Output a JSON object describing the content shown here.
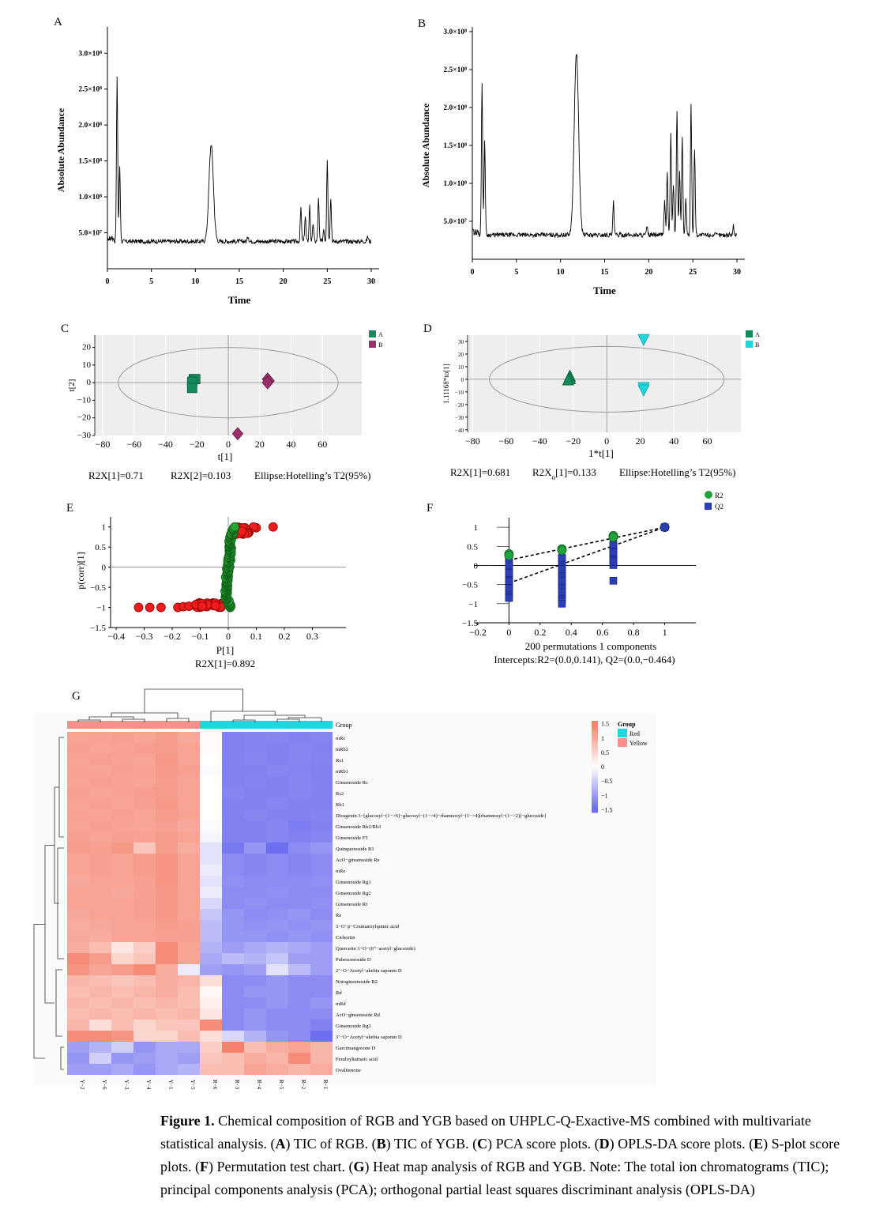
{
  "panel_labels": [
    "A",
    "B",
    "C",
    "D",
    "E",
    "F",
    "G"
  ],
  "chart_data": [
    {
      "panel": "A",
      "type": "line",
      "xlabel": "Time",
      "ylabel": "Absolute Abundance",
      "xlim": [
        0,
        30
      ],
      "ylim": [
        0,
        330000000
      ],
      "xticks": [
        "0",
        "5",
        "10",
        "15",
        "20",
        "25",
        "30"
      ],
      "yticks": [
        "5.0×10⁷",
        "1.0×10⁸",
        "1.5×10⁸",
        "2.0×10⁸",
        "2.5×10⁸",
        "3.0×10⁸"
      ],
      "ytick_values": [
        50000000,
        100000000,
        150000000,
        200000000,
        250000000,
        300000000
      ],
      "peaks": [
        {
          "x": 1.1,
          "y": 265000000
        },
        {
          "x": 1.4,
          "y": 143000000
        },
        {
          "x": 11.8,
          "y": 173000000
        },
        {
          "x": 16.0,
          "y": 46000000
        },
        {
          "x": 22.0,
          "y": 85000000
        },
        {
          "x": 22.5,
          "y": 73000000
        },
        {
          "x": 23.0,
          "y": 88000000
        },
        {
          "x": 23.4,
          "y": 63000000
        },
        {
          "x": 24.0,
          "y": 97000000
        },
        {
          "x": 24.6,
          "y": 56000000
        },
        {
          "x": 25.0,
          "y": 153000000
        },
        {
          "x": 25.4,
          "y": 100000000
        },
        {
          "x": 29.6,
          "y": 45000000
        }
      ],
      "baseline": 38000000
    },
    {
      "panel": "B",
      "type": "line",
      "xlabel": "Time",
      "ylabel": "Absolute Abundance",
      "xlim": [
        0,
        30
      ],
      "ylim": [
        0,
        300000000
      ],
      "xticks": [
        "0",
        "5",
        "10",
        "15",
        "20",
        "25",
        "30"
      ],
      "yticks": [
        "5.0×10⁷",
        "1.0×10⁸",
        "1.5×10⁸",
        "2.0×10⁸",
        "2.5×10⁸",
        "3.0×10⁸"
      ],
      "ytick_values": [
        50000000,
        100000000,
        150000000,
        200000000,
        250000000,
        300000000
      ],
      "peaks": [
        {
          "x": 1.1,
          "y": 235000000
        },
        {
          "x": 1.4,
          "y": 156000000
        },
        {
          "x": 11.8,
          "y": 272000000
        },
        {
          "x": 16.0,
          "y": 75000000
        },
        {
          "x": 19.8,
          "y": 42000000
        },
        {
          "x": 21.8,
          "y": 78000000
        },
        {
          "x": 22.1,
          "y": 115000000
        },
        {
          "x": 22.5,
          "y": 167000000
        },
        {
          "x": 22.8,
          "y": 100000000
        },
        {
          "x": 23.2,
          "y": 198000000
        },
        {
          "x": 23.5,
          "y": 115000000
        },
        {
          "x": 23.8,
          "y": 162000000
        },
        {
          "x": 24.2,
          "y": 80000000
        },
        {
          "x": 24.8,
          "y": 204000000
        },
        {
          "x": 25.2,
          "y": 145000000
        },
        {
          "x": 29.6,
          "y": 44000000
        }
      ],
      "baseline": 32000000
    },
    {
      "panel": "C",
      "type": "scatter",
      "xlabel": "t[1]",
      "ylabel": "t[2]",
      "xlim": [
        -85,
        85
      ],
      "ylim": [
        -30,
        27
      ],
      "xticks": [
        "−80",
        "−60",
        "−40",
        "−20",
        "0",
        "20",
        "40",
        "60"
      ],
      "yticks": [
        "−30",
        "−20",
        "−10",
        "0",
        "10",
        "20"
      ],
      "legend": [
        "A",
        "B"
      ],
      "series": [
        {
          "name": "A",
          "color": "#138b5a",
          "marker": "square",
          "points": [
            [
              -22,
              2
            ],
            [
              -21,
              2
            ],
            [
              -23,
              0.5
            ],
            [
              -23,
              -3
            ]
          ]
        },
        {
          "name": "B",
          "color": "#9c2e6b",
          "marker": "diamond",
          "points": [
            [
              25,
              2
            ],
            [
              26,
              1
            ],
            [
              25,
              0
            ],
            [
              6,
              -29
            ]
          ]
        }
      ],
      "footer": [
        "R2X[1]=0.71",
        "R2X[2]=0.103",
        "Ellipse:Hotelling’s T2(95%)"
      ]
    },
    {
      "panel": "D",
      "type": "scatter",
      "xlabel": "1*t[1]",
      "ylabel": "1.11168*to[1]",
      "xlim": [
        -83,
        80
      ],
      "ylim": [
        -42,
        35
      ],
      "xticks": [
        "−80",
        "−60",
        "−40",
        "−20",
        "0",
        "20",
        "40",
        "60"
      ],
      "yticks": [
        "−40",
        "−30",
        "−20",
        "−10",
        "0",
        "10",
        "20",
        "30"
      ],
      "legend": [
        "A",
        "B"
      ],
      "series": [
        {
          "name": "A",
          "color": "#138b5a",
          "marker": "triangle-up",
          "points": [
            [
              -22,
              2
            ],
            [
              -22,
              0
            ],
            [
              -23,
              -1
            ]
          ]
        },
        {
          "name": "B",
          "color": "#1fd6dd",
          "marker": "triangle-down",
          "points": [
            [
              22,
              32
            ],
            [
              22,
              -6
            ],
            [
              22,
              -8
            ]
          ]
        }
      ],
      "footer": [
        "R2X[1]=0.681",
        "R2Xo[1]=0.133",
        "Ellipse:Hotelling’s T2(95%)"
      ]
    },
    {
      "panel": "E",
      "type": "scatter",
      "xlabel": "P[1]",
      "ylabel": "p(corr)[1]",
      "xlim": [
        -0.42,
        0.42
      ],
      "ylim": [
        -1.5,
        1.25
      ],
      "xticks": [
        "−0.4",
        "−0.3",
        "−0.2",
        "−0.1",
        "0",
        "0.1",
        "0.2",
        "0.3"
      ],
      "yticks": [
        "−1.5",
        "−1",
        "−0.5",
        "0",
        "0.5",
        "1"
      ],
      "footer": [
        "R2X[1]=0.892"
      ]
    },
    {
      "panel": "F",
      "type": "scatter",
      "xlabel": "",
      "ylabel": "",
      "xlim": [
        -0.22,
        1.2
      ],
      "ylim": [
        -1.5,
        1.25
      ],
      "xticks": [
        "−0.2",
        "0",
        "0.2",
        "0.4",
        "0.6",
        "0.8",
        "1"
      ],
      "yticks": [
        "−1.5",
        "−1",
        "−0.5",
        "0",
        "0.5",
        "1"
      ],
      "legend": [
        "R2",
        "Q2"
      ],
      "series": [
        {
          "name": "R2",
          "color": "#1fa33a",
          "points": [
            [
              0,
              0.3
            ],
            [
              0,
              0.26
            ],
            [
              0.34,
              0.43
            ],
            [
              0.34,
              0.4
            ],
            [
              0.67,
              0.78
            ],
            [
              0.67,
              0.74
            ],
            [
              1,
              1
            ]
          ]
        },
        {
          "name": "Q2",
          "color": "#2b3fb3",
          "points": [
            [
              0,
              0.12
            ],
            [
              0,
              0
            ],
            [
              0,
              -0.2
            ],
            [
              0,
              -0.4
            ],
            [
              0,
              -0.6
            ],
            [
              0,
              -0.85
            ],
            [
              0.34,
              0.2
            ],
            [
              0.34,
              -0.1
            ],
            [
              0.34,
              -0.4
            ],
            [
              0.34,
              -0.7
            ],
            [
              0.34,
              -1.0
            ],
            [
              0.67,
              0.55
            ],
            [
              0.67,
              0.35
            ],
            [
              0.67,
              0.1
            ],
            [
              0.67,
              -0.4
            ],
            [
              1,
              1
            ]
          ]
        }
      ],
      "regression": [
        {
          "name": "R2",
          "from": [
            0,
            0.141
          ],
          "to": [
            1,
            1
          ]
        },
        {
          "name": "Q2",
          "from": [
            0,
            -0.464
          ],
          "to": [
            1,
            1
          ]
        }
      ],
      "footer": [
        "200 permutations 1 components",
        "Intercepts:R2=(0.0,0.141), Q2=(0.0,−0.464)"
      ]
    },
    {
      "panel": "G",
      "type": "heatmap",
      "columns": [
        "Y−2",
        "Y−6",
        "Y−3",
        "Y−4",
        "Y−1",
        "Y−5",
        "R−6",
        "R−3",
        "R−4",
        "R−5",
        "R−2",
        "R−1"
      ],
      "column_group": [
        "Yellow",
        "Yellow",
        "Yellow",
        "Yellow",
        "Yellow",
        "Yellow",
        "Red",
        "Red",
        "Red",
        "Red",
        "Red",
        "Red"
      ],
      "rows": [
        "mRc",
        "mRb2",
        "Rs1",
        "mRb1",
        "Ginsenoside Rc",
        "Rs2",
        "Rb1",
        "Diosgenin 3−[glucosyl−(1−>6)−glucosyl−(1−>4)−rhamnosyl−(1−>4)[rhamnosyl−(1−>2)]−glucoside]",
        "Ginsenoside Rb2/Rb3",
        "Ginsenoside F5",
        "Quinquenoside R1",
        "AcO−ginsenoside Re",
        "mRe",
        "Ginsenoside Rg1",
        "Ginsenoside Rg2",
        "Ginsenoside Rf",
        "Re",
        "3−O−p−Coumaroylquinic acid",
        "Cichoriin",
        "Quercetin 3−O−(6”−acetyl−glucoside)",
        "Pubescenoside D",
        "2’−O−Acetyl−akebia saponin D",
        "Notoginsenoside R2",
        "Rd",
        "mRd",
        "AcO−ginsenoside Rd",
        "Ginsenoside Rg3",
        "3’−O−Acetyl−akebia saponin D",
        "Garcimangosone D",
        "Feruloyltartaric acid",
        "Ovalitenone"
      ],
      "values": [
        [
          1.1,
          1.12,
          1.15,
          1.1,
          1.2,
          1.05,
          0.05,
          -1.3,
          -1.28,
          -1.25,
          -1.3,
          -1.27
        ],
        [
          1.15,
          1.1,
          1.12,
          1.18,
          1.2,
          1.1,
          0.05,
          -1.3,
          -1.28,
          -1.3,
          -1.25,
          -1.3
        ],
        [
          1.1,
          1.15,
          1.12,
          1.1,
          1.25,
          1.1,
          0.0,
          -1.3,
          -1.25,
          -1.3,
          -1.25,
          -1.28
        ],
        [
          1.12,
          1.1,
          1.15,
          1.12,
          1.22,
          1.15,
          -0.05,
          -1.3,
          -1.3,
          -1.25,
          -1.28,
          -1.3
        ],
        [
          1.1,
          1.15,
          1.12,
          1.1,
          1.2,
          1.1,
          0.0,
          -1.3,
          -1.28,
          -1.3,
          -1.25,
          -1.3
        ],
        [
          1.15,
          1.1,
          1.12,
          1.18,
          1.2,
          1.1,
          0.0,
          -1.25,
          -1.3,
          -1.3,
          -1.25,
          -1.3
        ],
        [
          1.1,
          1.15,
          1.1,
          1.15,
          1.25,
          1.1,
          0.0,
          -1.3,
          -1.3,
          -1.25,
          -1.3,
          -1.3
        ],
        [
          1.12,
          1.1,
          1.15,
          1.1,
          1.2,
          1.12,
          0.0,
          -1.3,
          -1.25,
          -1.3,
          -1.3,
          -1.28
        ],
        [
          1.1,
          1.15,
          1.12,
          1.1,
          1.15,
          1.05,
          -0.05,
          -1.3,
          -1.3,
          -1.25,
          -1.35,
          -1.3
        ],
        [
          1.15,
          1.1,
          1.15,
          1.12,
          1.2,
          1.1,
          -0.1,
          -1.3,
          -1.3,
          -1.25,
          -1.3,
          -1.25
        ],
        [
          1.2,
          1.15,
          1.25,
          0.7,
          1.2,
          1.0,
          -0.3,
          -1.4,
          -1.1,
          -1.5,
          -1.2,
          -1.1
        ],
        [
          1.1,
          1.15,
          1.1,
          1.2,
          1.3,
          1.1,
          -0.3,
          -1.2,
          -1.25,
          -1.2,
          -1.25,
          -1.2
        ],
        [
          1.1,
          1.15,
          1.1,
          1.2,
          1.3,
          1.1,
          -0.2,
          -1.2,
          -1.25,
          -1.2,
          -1.25,
          -1.2
        ],
        [
          1.05,
          1.1,
          1.1,
          1.15,
          1.3,
          1.1,
          -0.3,
          -1.15,
          -1.2,
          -1.2,
          -1.2,
          -1.15
        ],
        [
          1.1,
          1.1,
          1.05,
          1.15,
          1.25,
          1.1,
          -0.2,
          -1.2,
          -1.2,
          -1.15,
          -1.2,
          -1.2
        ],
        [
          1.1,
          1.1,
          1.1,
          1.15,
          1.25,
          1.1,
          -0.4,
          -1.2,
          -1.15,
          -1.2,
          -1.2,
          -1.15
        ],
        [
          1.05,
          1.1,
          1.1,
          1.15,
          1.25,
          1.1,
          -0.6,
          -1.1,
          -1.2,
          -1.15,
          -1.1,
          -1.2
        ],
        [
          1.0,
          1.05,
          1.1,
          1.1,
          1.2,
          1.15,
          -0.7,
          -1.1,
          -1.15,
          -1.1,
          -1.15,
          -1.1
        ],
        [
          1.05,
          1.0,
          1.1,
          1.1,
          1.15,
          1.15,
          -0.7,
          -1.1,
          -1.1,
          -1.15,
          -1.1,
          -1.15
        ],
        [
          1.0,
          0.8,
          0.3,
          0.6,
          1.4,
          1.1,
          -0.8,
          -1.0,
          -0.9,
          -0.8,
          -0.9,
          -1.0
        ],
        [
          1.4,
          1.2,
          0.5,
          0.7,
          1.4,
          1.1,
          -0.9,
          -0.7,
          -0.8,
          -0.6,
          -1.0,
          -1.0
        ],
        [
          1.3,
          1.1,
          1.2,
          1.4,
          1.0,
          -0.2,
          -1.0,
          -1.1,
          -1.0,
          -0.3,
          -0.7,
          -1.0
        ],
        [
          0.9,
          0.8,
          0.7,
          0.8,
          1.0,
          0.9,
          0.4,
          -1.2,
          -1.2,
          -1.1,
          -1.2,
          -1.2
        ],
        [
          0.8,
          0.9,
          0.8,
          0.9,
          1.0,
          0.8,
          0.1,
          -1.2,
          -1.1,
          -1.1,
          -1.2,
          -1.2
        ],
        [
          0.9,
          0.8,
          0.9,
          0.8,
          0.9,
          0.8,
          0.2,
          -1.2,
          -1.2,
          -1.1,
          -1.2,
          -1.1
        ],
        [
          0.8,
          0.9,
          0.8,
          0.9,
          0.8,
          0.9,
          0.3,
          -1.2,
          -1.1,
          -1.2,
          -1.2,
          -1.2
        ],
        [
          0.9,
          0.4,
          0.8,
          0.5,
          0.7,
          0.7,
          1.4,
          -1.2,
          -1.1,
          -1.2,
          -1.2,
          -1.3
        ],
        [
          1.4,
          1.4,
          1.3,
          0.5,
          0.5,
          0.8,
          0.4,
          -0.4,
          -0.8,
          -1.1,
          -1.2,
          -1.6
        ],
        [
          -1.0,
          -0.8,
          -0.5,
          -1.1,
          -0.9,
          -0.9,
          0.6,
          1.7,
          0.8,
          1.0,
          1.1,
          0.9
        ],
        [
          -1.1,
          -0.5,
          -1.1,
          -1.0,
          -0.9,
          -1.0,
          0.7,
          0.8,
          1.0,
          0.9,
          1.4,
          0.9
        ],
        [
          -1.0,
          -1.0,
          -0.9,
          -1.1,
          -0.9,
          -0.8,
          0.8,
          0.8,
          1.1,
          1.0,
          0.9,
          1.0
        ]
      ],
      "legend_group_title": "Group",
      "legend_groups": [
        {
          "name": "Red",
          "color": "#1fd6dd"
        },
        {
          "name": "Yellow",
          "color": "#f4918a"
        }
      ],
      "scale_ticks": [
        "1.5",
        "1",
        "0.5",
        "0",
        "−0.5",
        "−1",
        "−1.5"
      ],
      "scale_tick_values": [
        1.5,
        1,
        0.5,
        0,
        -0.5,
        -1,
        -1.5
      ],
      "group_track_label": "Group"
    }
  ],
  "caption": {
    "figure_label": "Figure 1.",
    "text_1": " Chemical composition of RGB and YGB based on UHPLC-Q-Exactive-MS combined with multivariate statistical analysis. (",
    "a": "A",
    "text_a": ") TIC of RGB. (",
    "b": "B",
    "text_b": ") TIC of YGB. (",
    "c": "C",
    "text_c": ") PCA score plots. (",
    "d": "D",
    "text_d": ") OPLS-DA score plots. (",
    "e": "E",
    "text_e": ") S-plot score plots. (",
    "f": "F",
    "text_f": ") Permutation test chart. (",
    "g": "G",
    "text_g": ") Heat map analysis of RGB and YGB. Note: The total ion chromatograms (TIC); principal components analysis (PCA); orthogonal partial least squares discriminant analysis (OPLS-DA)"
  },
  "colors": {
    "heat_high": "#f4836e",
    "heat_mid": "#ffffff",
    "heat_low": "#6e6ef0",
    "red_group": "#1fd6dd",
    "yellow_group": "#f4918a"
  }
}
